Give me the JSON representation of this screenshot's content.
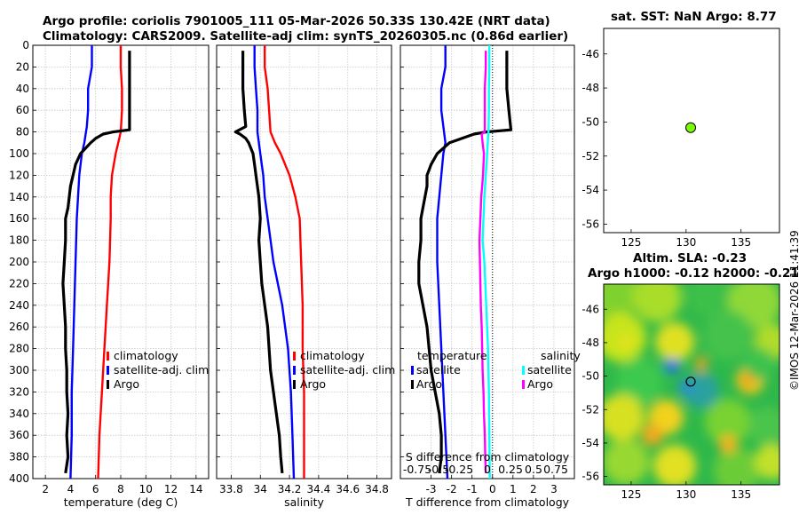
{
  "header": {
    "title_line1": "Argo profile: coriolis 7901005_111 05-Mar-2026 50.33S 130.42E (NRT data)",
    "title_line2": "Climatology: CARS2009. Satellite-adj clim: synTS_20260305.nc (0.86d earlier)"
  },
  "depth_ticks": [
    0,
    20,
    40,
    60,
    80,
    100,
    120,
    140,
    160,
    180,
    200,
    220,
    240,
    260,
    280,
    300,
    320,
    340,
    360,
    380,
    400
  ],
  "colors": {
    "climatology": "#ff0000",
    "satellite": "#0000ff",
    "argo": "#000000",
    "sal_satellite": "#00ffff",
    "sal_argo": "#ff00ff",
    "sst_dot": "#7cfc00"
  },
  "chart_data": [
    {
      "type": "line",
      "name": "temperature",
      "xlabel": "temperature (deg C)",
      "xlim": [
        1,
        15
      ],
      "ylim": [
        400,
        0
      ],
      "xticks": [
        2,
        4,
        6,
        8,
        10,
        12,
        14
      ],
      "series": [
        {
          "name": "climatology",
          "depth": [
            0,
            20,
            40,
            60,
            80,
            90,
            100,
            120,
            140,
            160,
            200,
            240,
            280,
            320,
            360,
            400
          ],
          "values": [
            8.0,
            8.0,
            8.1,
            8.1,
            8.0,
            7.8,
            7.6,
            7.3,
            7.2,
            7.2,
            7.1,
            6.9,
            6.7,
            6.5,
            6.3,
            6.2
          ]
        },
        {
          "name": "satellite-adj. clim",
          "depth": [
            0,
            20,
            40,
            60,
            75,
            90,
            100,
            120,
            140,
            160,
            200,
            240,
            280,
            320,
            360,
            400
          ],
          "values": [
            5.7,
            5.7,
            5.4,
            5.4,
            5.3,
            5.1,
            4.9,
            4.7,
            4.6,
            4.5,
            4.4,
            4.3,
            4.2,
            4.1,
            4.1,
            4.0
          ],
          "label": "satellite-adj. clim"
        },
        {
          "name": "Argo",
          "depth": [
            5,
            20,
            40,
            60,
            78,
            80,
            82,
            86,
            90,
            100,
            110,
            120,
            130,
            140,
            150,
            160,
            180,
            200,
            220,
            240,
            260,
            280,
            300,
            320,
            340,
            360,
            380,
            395
          ],
          "values": [
            8.7,
            8.7,
            8.7,
            8.7,
            8.7,
            7.4,
            6.6,
            6.0,
            5.6,
            4.8,
            4.4,
            4.2,
            4.0,
            3.9,
            3.8,
            3.6,
            3.6,
            3.5,
            3.4,
            3.5,
            3.6,
            3.6,
            3.7,
            3.7,
            3.8,
            3.7,
            3.8,
            3.6
          ]
        }
      ],
      "legend": [
        "climatology",
        "satellite-adj. clim",
        "Argo"
      ]
    },
    {
      "type": "line",
      "name": "salinity",
      "xlabel": "salinity",
      "xlim": [
        33.7,
        34.9
      ],
      "ylim": [
        400,
        0
      ],
      "xticks": [
        33.8,
        34,
        34.2,
        34.4,
        34.6,
        34.8
      ],
      "series": [
        {
          "name": "climatology",
          "depth": [
            0,
            20,
            40,
            60,
            80,
            90,
            100,
            120,
            140,
            160,
            200,
            240,
            280,
            320,
            360,
            400
          ],
          "values": [
            34.03,
            34.03,
            34.05,
            34.06,
            34.07,
            34.1,
            34.14,
            34.2,
            34.24,
            34.27,
            34.28,
            34.29,
            34.29,
            34.3,
            34.3,
            34.3
          ]
        },
        {
          "name": "satellite-adj. clim",
          "depth": [
            0,
            20,
            40,
            60,
            80,
            100,
            120,
            140,
            160,
            200,
            240,
            280,
            320,
            360,
            400
          ],
          "values": [
            33.96,
            33.96,
            33.97,
            33.98,
            33.98,
            34.0,
            34.02,
            34.03,
            34.05,
            34.09,
            34.15,
            34.19,
            34.21,
            34.22,
            34.23
          ]
        },
        {
          "name": "Argo",
          "depth": [
            5,
            20,
            40,
            60,
            75,
            80,
            82,
            86,
            90,
            100,
            110,
            120,
            140,
            160,
            180,
            200,
            220,
            240,
            260,
            280,
            300,
            320,
            340,
            360,
            380,
            395
          ],
          "values": [
            33.88,
            33.88,
            33.88,
            33.89,
            33.9,
            33.83,
            33.86,
            33.9,
            33.92,
            33.95,
            33.96,
            33.97,
            33.99,
            34.0,
            33.99,
            34.0,
            34.01,
            34.03,
            34.05,
            34.06,
            34.07,
            34.09,
            34.11,
            34.13,
            34.14,
            34.15
          ]
        }
      ],
      "legend": [
        "climatology",
        "satellite-adj. clim",
        "Argo"
      ]
    },
    {
      "type": "line",
      "name": "difference",
      "xlabel": "T difference from climatology",
      "top_label_line1": "S difference from climatology",
      "top_label_line2": "-0.75 -0.5 -0.25 0 0.25 0.5 0.75",
      "top_ticks": [
        "-0.75",
        "-0.5",
        "-0.25",
        "0",
        "0.25",
        "0.5",
        "0.75"
      ],
      "xlim": [
        -4.5,
        4
      ],
      "ylim": [
        400,
        0
      ],
      "xticks": [
        -3,
        -2,
        -1,
        0,
        1,
        2,
        3
      ],
      "series": [
        {
          "name": "temperature satellite",
          "depth": [
            0,
            20,
            40,
            60,
            75,
            90,
            100,
            120,
            140,
            160,
            200,
            240,
            280,
            320,
            360,
            400
          ],
          "values": [
            -2.3,
            -2.3,
            -2.5,
            -2.5,
            -2.4,
            -2.3,
            -2.4,
            -2.5,
            -2.6,
            -2.7,
            -2.7,
            -2.6,
            -2.5,
            -2.4,
            -2.3,
            -2.2
          ]
        },
        {
          "name": "temperature Argo",
          "depth": [
            5,
            20,
            40,
            60,
            78,
            80,
            82,
            86,
            90,
            100,
            110,
            120,
            130,
            140,
            150,
            160,
            180,
            200,
            220,
            240,
            260,
            280,
            300,
            320,
            340,
            360,
            380,
            395
          ],
          "values": [
            0.7,
            0.7,
            0.7,
            0.8,
            0.9,
            -0.3,
            -0.9,
            -1.5,
            -2.1,
            -2.7,
            -3.0,
            -3.2,
            -3.2,
            -3.3,
            -3.4,
            -3.5,
            -3.5,
            -3.6,
            -3.6,
            -3.4,
            -3.2,
            -3.1,
            -3.0,
            -2.8,
            -2.6,
            -2.5,
            -2.5,
            -2.6
          ]
        },
        {
          "name": "salinity satellite",
          "depth": [
            0,
            20,
            40,
            60,
            80,
            100,
            120,
            140,
            160,
            180,
            200,
            240,
            280,
            320,
            360,
            400
          ],
          "values": [
            -0.07,
            -0.07,
            -0.08,
            -0.08,
            -0.09,
            -0.12,
            -0.15,
            -0.18,
            -0.2,
            -0.22,
            -0.18,
            -0.14,
            -0.1,
            -0.08,
            -0.07,
            -0.06
          ]
        },
        {
          "name": "salinity Argo",
          "depth": [
            5,
            20,
            40,
            60,
            80,
            82,
            90,
            100,
            120,
            140,
            160,
            180,
            200,
            220,
            240,
            260,
            280,
            300,
            320,
            340,
            360,
            380,
            395
          ],
          "values": [
            -0.15,
            -0.15,
            -0.17,
            -0.17,
            -0.17,
            -0.24,
            -0.22,
            -0.19,
            -0.21,
            -0.25,
            -0.27,
            -0.29,
            -0.28,
            -0.27,
            -0.26,
            -0.24,
            -0.23,
            -0.22,
            -0.2,
            -0.19,
            -0.17,
            -0.16,
            -0.15
          ]
        }
      ],
      "legend": {
        "temperature_title": "temperature",
        "salinity_title": "salinity",
        "satellite": "satellite",
        "argo": "Argo"
      }
    },
    {
      "type": "scatter",
      "name": "sst map",
      "title": "sat. SST: NaN Argo: 8.77",
      "xlim": [
        122.5,
        138.5
      ],
      "ylim": [
        -56.5,
        -44.5
      ],
      "xticks": [
        "125",
        "130",
        "135"
      ],
      "yticks": [
        "-46",
        "-48",
        "-50",
        "-52",
        "-54",
        "-56"
      ],
      "point": {
        "lon": 130.42,
        "lat": -50.33
      }
    },
    {
      "type": "heatmap",
      "name": "sla map",
      "title_line1": "Altim. SLA: -0.23",
      "title_line2": "Argo h1000: -0.12 h2000: -0.21",
      "xlim": [
        122.5,
        138.5
      ],
      "ylim": [
        -56.5,
        -44.5
      ],
      "xticks": [
        "125",
        "130",
        "135"
      ],
      "yticks": [
        "-46",
        "-48",
        "-50",
        "-52",
        "-54",
        "-56"
      ],
      "point": {
        "lon": 130.42,
        "lat": -50.33
      }
    }
  ],
  "stamp": "©IMOS 12-Mar-2026 11:41:39"
}
